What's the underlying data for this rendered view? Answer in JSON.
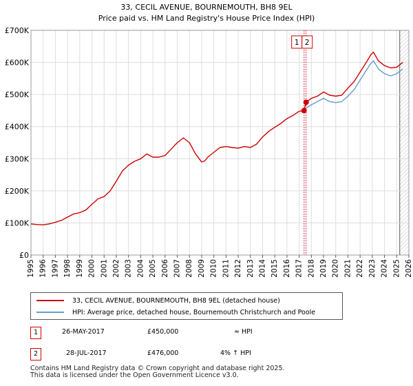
{
  "chart_data": {
    "type": "line",
    "title": "33, CECIL AVENUE, BOURNEMOUTH, BH8 9EL",
    "subtitle": "Price paid vs. HM Land Registry's House Price Index (HPI)",
    "xlim": [
      1995,
      2026
    ],
    "ylim": [
      0,
      700000
    ],
    "x_ticks": [
      1995,
      1996,
      1997,
      1998,
      1999,
      2000,
      2001,
      2002,
      2003,
      2004,
      2005,
      2006,
      2007,
      2008,
      2009,
      2010,
      2011,
      2012,
      2013,
      2014,
      2015,
      2016,
      2017,
      2018,
      2019,
      2020,
      2021,
      2022,
      2023,
      2024,
      2025,
      2026
    ],
    "y_ticks": [
      0,
      100000,
      200000,
      300000,
      400000,
      500000,
      600000,
      700000
    ],
    "y_tick_labels": [
      "£0",
      "£100K",
      "£200K",
      "£300K",
      "£400K",
      "£500K",
      "£600K",
      "£700K"
    ],
    "grid": true,
    "hatch_from_year": 2025.25,
    "series": [
      {
        "name": "33, CECIL AVENUE, BOURNEMOUTH, BH8 9EL (detached house)",
        "color": "#cc0000",
        "x": [
          1995.0,
          1995.5,
          1996.0,
          1996.5,
          1997.0,
          1997.5,
          1998.0,
          1998.5,
          1999.0,
          1999.5,
          2000.0,
          2000.5,
          2001.0,
          2001.5,
          2002.0,
          2002.5,
          2003.0,
          2003.5,
          2004.0,
          2004.5,
          2005.0,
          2005.5,
          2006.0,
          2006.5,
          2007.0,
          2007.5,
          2008.0,
          2008.5,
          2009.0,
          2009.25,
          2009.5,
          2010.0,
          2010.5,
          2011.0,
          2011.5,
          2012.0,
          2012.5,
          2013.0,
          2013.5,
          2014.0,
          2014.5,
          2015.0,
          2015.5,
          2016.0,
          2016.5,
          2017.0,
          2017.4,
          2017.57,
          2018.0,
          2018.5,
          2019.0,
          2019.5,
          2020.0,
          2020.5,
          2021.0,
          2021.5,
          2022.0,
          2022.5,
          2022.9,
          2023.1,
          2023.5,
          2024.0,
          2024.5,
          2025.0,
          2025.5
        ],
        "y": [
          97000,
          95000,
          94000,
          97000,
          102000,
          108000,
          118000,
          128000,
          132000,
          140000,
          158000,
          175000,
          182000,
          200000,
          230000,
          262000,
          280000,
          292000,
          300000,
          315000,
          305000,
          305000,
          310000,
          330000,
          350000,
          365000,
          350000,
          315000,
          290000,
          293000,
          305000,
          320000,
          335000,
          338000,
          335000,
          333000,
          338000,
          335000,
          345000,
          368000,
          385000,
          398000,
          410000,
          425000,
          435000,
          448000,
          450000,
          476000,
          488000,
          495000,
          508000,
          498000,
          495000,
          498000,
          520000,
          540000,
          570000,
          600000,
          625000,
          632000,
          605000,
          590000,
          583000,
          585000,
          600000
        ]
      },
      {
        "name": "HPI: Average price, detached house, Bournemouth Christchurch and Poole",
        "color": "#6699cc",
        "x": [
          2017.57,
          2018.0,
          2018.5,
          2019.0,
          2019.5,
          2020.0,
          2020.5,
          2021.0,
          2021.5,
          2022.0,
          2022.5,
          2022.9,
          2023.1,
          2023.5,
          2024.0,
          2024.5,
          2025.0,
          2025.5
        ],
        "y": [
          458000,
          468000,
          478000,
          488000,
          478000,
          475000,
          478000,
          495000,
          515000,
          545000,
          575000,
          598000,
          605000,
          580000,
          565000,
          558000,
          565000,
          580000
        ]
      }
    ],
    "sale_markers": [
      {
        "label": "1",
        "x": 2017.4,
        "y": 450000
      },
      {
        "label": "2",
        "x": 2017.57,
        "y": 476000
      }
    ]
  },
  "legend": {
    "entries": [
      "33, CECIL AVENUE, BOURNEMOUTH, BH8 9EL (detached house)",
      "HPI: Average price, detached house, Bournemouth Christchurch and Poole"
    ]
  },
  "transactions": [
    {
      "id": "1",
      "date": "26-MAY-2017",
      "price": "£450,000",
      "hpi": "≈ HPI"
    },
    {
      "id": "2",
      "date": "28-JUL-2017",
      "price": "£476,000",
      "hpi": "4% ↑ HPI"
    }
  ],
  "footer": {
    "line1": "Contains HM Land Registry data © Crown copyright and database right 2025.",
    "line2": "This data is licensed under the Open Government Licence v3.0."
  },
  "colors": {
    "property": "#cc0000",
    "hpi": "#6699cc",
    "marker_line": "#ff0000",
    "grid": "#dddddd",
    "highlight": "#eef0fb"
  }
}
